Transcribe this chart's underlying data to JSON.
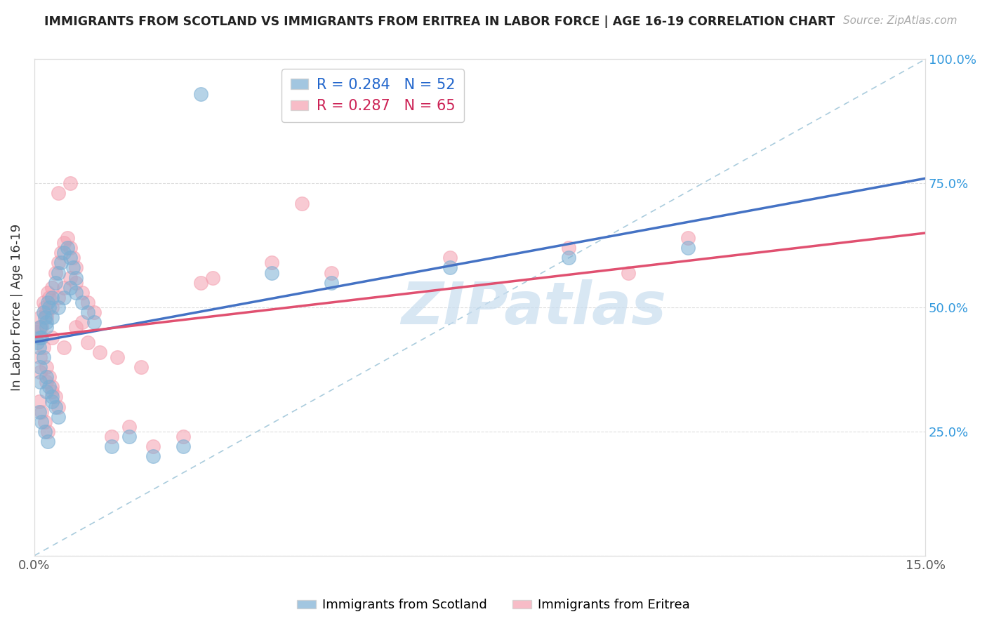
{
  "title": "IMMIGRANTS FROM SCOTLAND VS IMMIGRANTS FROM ERITREA IN LABOR FORCE | AGE 16-19 CORRELATION CHART",
  "source": "Source: ZipAtlas.com",
  "ylabel": "In Labor Force | Age 16-19",
  "xlim": [
    0.0,
    0.15
  ],
  "ylim": [
    0.0,
    1.0
  ],
  "xtick_positions": [
    0.0,
    0.03,
    0.06,
    0.09,
    0.12,
    0.15
  ],
  "xticklabels": [
    "0.0%",
    "",
    "",
    "",
    "",
    "15.0%"
  ],
  "ytick_positions": [
    0.0,
    0.25,
    0.5,
    0.75,
    1.0
  ],
  "yticklabels_right": [
    "",
    "25.0%",
    "50.0%",
    "75.0%",
    "100.0%"
  ],
  "scotland_color": "#7BAFD4",
  "eritrea_color": "#F4A0B0",
  "scotland_line_color": "#4472C4",
  "eritrea_line_color": "#E05070",
  "scotland_R": 0.284,
  "scotland_N": 52,
  "eritrea_R": 0.287,
  "eritrea_N": 65,
  "watermark": "ZIPatlas",
  "ref_line_color": "#AACCEE",
  "scotland_x": [
    0.0005,
    0.001,
    0.0015,
    0.002,
    0.0008,
    0.0012,
    0.0018,
    0.0022,
    0.0025,
    0.003,
    0.0035,
    0.004,
    0.0045,
    0.005,
    0.0055,
    0.006,
    0.0065,
    0.007,
    0.001,
    0.0015,
    0.002,
    0.0025,
    0.003,
    0.0035,
    0.004,
    0.001,
    0.002,
    0.003,
    0.0008,
    0.0012,
    0.0018,
    0.0022,
    0.001,
    0.002,
    0.003,
    0.004,
    0.005,
    0.006,
    0.007,
    0.008,
    0.009,
    0.01,
    0.013,
    0.016,
    0.02,
    0.025,
    0.028,
    0.04,
    0.05,
    0.07,
    0.09,
    0.11
  ],
  "scotland_y": [
    0.43,
    0.46,
    0.49,
    0.47,
    0.42,
    0.44,
    0.48,
    0.51,
    0.5,
    0.52,
    0.55,
    0.57,
    0.59,
    0.61,
    0.62,
    0.6,
    0.58,
    0.56,
    0.38,
    0.4,
    0.36,
    0.34,
    0.32,
    0.3,
    0.28,
    0.35,
    0.33,
    0.31,
    0.29,
    0.27,
    0.25,
    0.23,
    0.44,
    0.46,
    0.48,
    0.5,
    0.52,
    0.54,
    0.53,
    0.51,
    0.49,
    0.47,
    0.22,
    0.24,
    0.2,
    0.22,
    0.93,
    0.57,
    0.55,
    0.58,
    0.6,
    0.62
  ],
  "eritrea_x": [
    0.0005,
    0.001,
    0.0015,
    0.002,
    0.0008,
    0.0012,
    0.0018,
    0.0022,
    0.0025,
    0.003,
    0.0035,
    0.004,
    0.0045,
    0.005,
    0.0055,
    0.006,
    0.0065,
    0.007,
    0.001,
    0.0015,
    0.002,
    0.0025,
    0.003,
    0.0035,
    0.004,
    0.001,
    0.002,
    0.003,
    0.0008,
    0.0012,
    0.0018,
    0.0022,
    0.001,
    0.002,
    0.003,
    0.004,
    0.005,
    0.006,
    0.007,
    0.008,
    0.009,
    0.01,
    0.013,
    0.016,
    0.02,
    0.025,
    0.028,
    0.04,
    0.05,
    0.07,
    0.09,
    0.11,
    0.006,
    0.004,
    0.007,
    0.003,
    0.005,
    0.008,
    0.009,
    0.011,
    0.014,
    0.018,
    0.03,
    0.045,
    0.1
  ],
  "eritrea_y": [
    0.45,
    0.48,
    0.51,
    0.49,
    0.44,
    0.46,
    0.5,
    0.53,
    0.52,
    0.54,
    0.57,
    0.59,
    0.61,
    0.63,
    0.64,
    0.62,
    0.6,
    0.58,
    0.4,
    0.42,
    0.38,
    0.36,
    0.34,
    0.32,
    0.3,
    0.37,
    0.35,
    0.33,
    0.31,
    0.29,
    0.27,
    0.25,
    0.46,
    0.48,
    0.5,
    0.52,
    0.54,
    0.56,
    0.55,
    0.53,
    0.51,
    0.49,
    0.24,
    0.26,
    0.22,
    0.24,
    0.55,
    0.59,
    0.57,
    0.6,
    0.62,
    0.64,
    0.75,
    0.73,
    0.46,
    0.44,
    0.42,
    0.47,
    0.43,
    0.41,
    0.4,
    0.38,
    0.56,
    0.71,
    0.57
  ]
}
